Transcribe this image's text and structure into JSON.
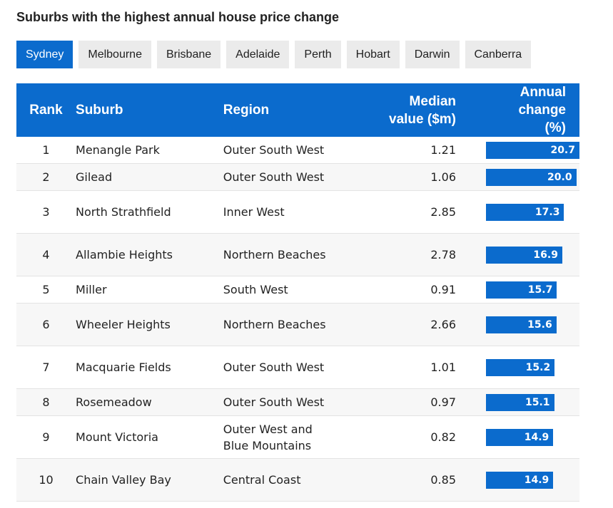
{
  "title": "Suburbs with the highest annual house price change",
  "tabs": [
    "Sydney",
    "Melbourne",
    "Brisbane",
    "Adelaide",
    "Perth",
    "Hobart",
    "Darwin",
    "Canberra"
  ],
  "table": {
    "headers": {
      "rank": "Rank",
      "suburb": "Suburb",
      "region": "Region",
      "median": "Median value ($m)",
      "change": "Annual change (%)"
    },
    "rows": [
      {
        "rank": 1,
        "suburb": "Menangle Park",
        "region": "Outer South West",
        "median": 1.21,
        "change": 20.7
      },
      {
        "rank": 2,
        "suburb": "Gilead",
        "region": "Outer South West",
        "median": 1.06,
        "change": 20,
        "change_label": "20.0"
      },
      {
        "rank": 3,
        "suburb": "North Strathfield",
        "region": "Inner West",
        "median": 2.85,
        "change": 17.3
      },
      {
        "rank": 4,
        "suburb": "Allambie Heights",
        "region": "Northern Beaches",
        "median": 2.78,
        "change": 16.9
      },
      {
        "rank": 5,
        "suburb": "Miller",
        "region": "South West",
        "median": 0.91,
        "change": 15.7
      },
      {
        "rank": 6,
        "suburb": "Wheeler Heights",
        "region": "Northern Beaches",
        "median": 2.66,
        "change": 15.6
      },
      {
        "rank": 7,
        "suburb": "Macquarie Fields",
        "region": "Outer South West",
        "median": 1.01,
        "change": 15.2
      },
      {
        "rank": 8,
        "suburb": "Rosemeadow",
        "region": "Outer South West",
        "median": 0.97,
        "change": 15.1
      },
      {
        "rank": 9,
        "suburb": "Mount Victoria",
        "region": "Outer West and Blue Mountains",
        "median": 0.82,
        "change": 14.9
      },
      {
        "rank": 10,
        "suburb": "Chain Valley Bay",
        "region": "Central Coast",
        "median": 0.85,
        "change": 14.9
      }
    ]
  }
}
